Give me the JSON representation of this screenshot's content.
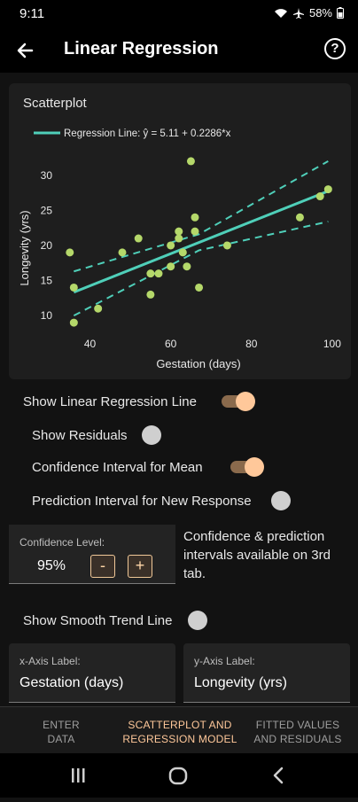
{
  "status": {
    "time": "9:11",
    "battery": "58%"
  },
  "app_bar": {
    "title": "Linear Regression",
    "help_label": "?"
  },
  "chart_data": {
    "type": "scatter",
    "title": "Scatterplot",
    "legend": "Regression Line: ŷ = 5.11 + 0.2286*x",
    "legend_placement": "top-left",
    "xlabel": "Gestation (days)",
    "ylabel": "Longevity (yrs)",
    "xlim": [
      30,
      102
    ],
    "ylim": [
      8,
      33
    ],
    "xticks": [
      40,
      60,
      80,
      100
    ],
    "yticks": [
      10,
      15,
      20,
      25,
      30
    ],
    "grid": false,
    "points": [
      {
        "x": 36,
        "y": 9
      },
      {
        "x": 36,
        "y": 14
      },
      {
        "x": 35,
        "y": 19
      },
      {
        "x": 42,
        "y": 11
      },
      {
        "x": 48,
        "y": 19
      },
      {
        "x": 52,
        "y": 21
      },
      {
        "x": 55,
        "y": 16
      },
      {
        "x": 55,
        "y": 13
      },
      {
        "x": 57,
        "y": 16
      },
      {
        "x": 60,
        "y": 17
      },
      {
        "x": 60,
        "y": 20
      },
      {
        "x": 62,
        "y": 21
      },
      {
        "x": 62,
        "y": 22
      },
      {
        "x": 63,
        "y": 19
      },
      {
        "x": 64,
        "y": 17
      },
      {
        "x": 65,
        "y": 32
      },
      {
        "x": 66,
        "y": 22
      },
      {
        "x": 66,
        "y": 24
      },
      {
        "x": 67,
        "y": 14
      },
      {
        "x": 74,
        "y": 20
      },
      {
        "x": 92,
        "y": 24
      },
      {
        "x": 97,
        "y": 27
      },
      {
        "x": 99,
        "y": 28
      }
    ],
    "regression": {
      "intercept": 5.11,
      "slope": 0.2286,
      "x_range": [
        36,
        99
      ]
    },
    "ci_upper": [
      {
        "x": 36,
        "y": 16.3
      },
      {
        "x": 67,
        "y": 21.6
      },
      {
        "x": 99,
        "y": 32.0
      }
    ],
    "ci_lower": [
      {
        "x": 36,
        "y": 10.0
      },
      {
        "x": 67,
        "y": 19.3
      },
      {
        "x": 99,
        "y": 23.4
      }
    ],
    "colors": {
      "points": "#b5d86a",
      "line": "#4fcfb9"
    }
  },
  "toggles": {
    "show_line": {
      "label": "Show Linear Regression Line",
      "on": true
    },
    "show_residuals": {
      "label": "Show Residuals",
      "on": false
    },
    "ci_mean": {
      "label": "Confidence Interval for Mean",
      "on": true
    },
    "pi_new": {
      "label": "Prediction Interval for New Response",
      "on": false
    },
    "smooth": {
      "label": "Show Smooth Trend Line",
      "on": false
    }
  },
  "confidence": {
    "label": "Confidence Level:",
    "value": "95%",
    "minus": "-",
    "plus": "+"
  },
  "conf_note": "Confidence & prediction intervals available on 3rd tab.",
  "x_axis_field": {
    "label": "x-Axis Label:",
    "value": "Gestation (days)"
  },
  "y_axis_field": {
    "label": "y-Axis Label:",
    "value": "Longevity (yrs)"
  },
  "tabs": [
    {
      "line1": "ENTER",
      "line2": "DATA"
    },
    {
      "line1": "SCATTERPLOT AND",
      "line2": "REGRESSION MODEL"
    },
    {
      "line1": "FITTED VALUES",
      "line2": "AND RESIDUALS"
    }
  ],
  "colors": {
    "accent": "#ffc89a",
    "background": "#121212",
    "card": "#1e1e1e"
  }
}
